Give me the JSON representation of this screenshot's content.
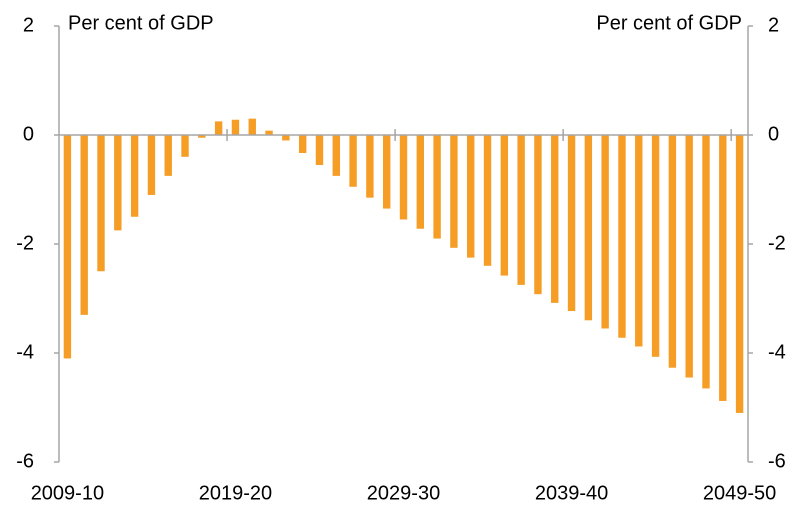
{
  "chart_data": {
    "type": "bar",
    "y_label": "Per cent of GDP",
    "y2_label": "Per cent of GDP",
    "categories": [
      "2009-10",
      null,
      null,
      null,
      null,
      null,
      null,
      null,
      null,
      null,
      "2019-20",
      null,
      null,
      null,
      null,
      null,
      null,
      null,
      null,
      null,
      "2029-30",
      null,
      null,
      null,
      null,
      null,
      null,
      null,
      null,
      null,
      "2039-40",
      null,
      null,
      null,
      null,
      null,
      null,
      null,
      null,
      null,
      "2049-50"
    ],
    "values": [
      -4.1,
      -3.3,
      -2.5,
      -1.75,
      -1.5,
      -1.1,
      -0.75,
      -0.4,
      -0.05,
      0.25,
      0.28,
      0.3,
      0.08,
      -0.1,
      -0.33,
      -0.55,
      -0.75,
      -0.95,
      -1.15,
      -1.35,
      -1.55,
      -1.72,
      -1.9,
      -2.07,
      -2.25,
      -2.4,
      -2.58,
      -2.75,
      -2.92,
      -3.08,
      -3.23,
      -3.4,
      -3.55,
      -3.72,
      -3.88,
      -4.07,
      -4.27,
      -4.45,
      -4.65,
      -4.88,
      -5.1
    ],
    "color": "#f59d25",
    "ylim": [
      -6,
      2
    ],
    "yticks": [
      -6,
      -4,
      -2,
      0,
      2
    ],
    "y2lim": [
      -6,
      2
    ],
    "y2ticks": [
      -6,
      -4,
      -2,
      0,
      2
    ],
    "grid": false
  }
}
